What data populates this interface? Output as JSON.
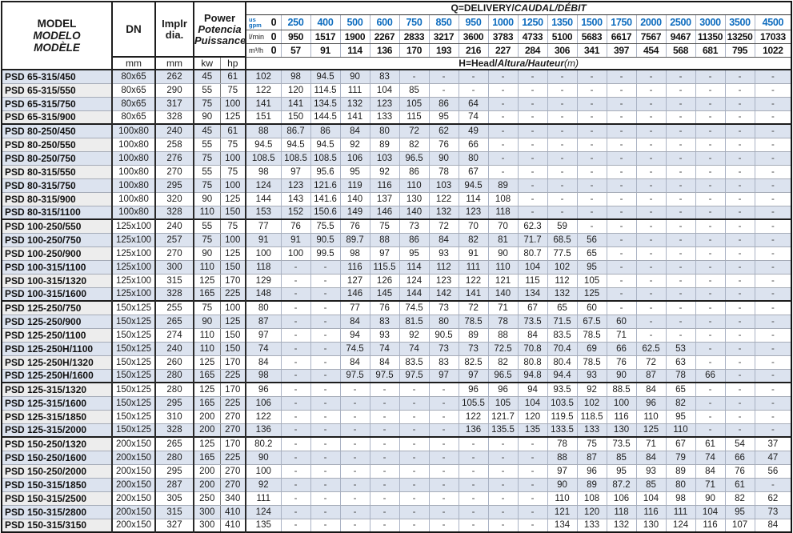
{
  "colors": {
    "accent_blue": "#0e6cbe",
    "row_stripe": "#dce3ef",
    "model_column_gray": "#ededed",
    "grid_light": "#a9b2c4",
    "border_dark": "#222222"
  },
  "table": {
    "header": {
      "model": {
        "l1": "MODEL",
        "l2": "MODELO",
        "l3": "MODÈLE"
      },
      "dn": "DN",
      "implr": {
        "l1": "Implr",
        "l2": "dia."
      },
      "power": {
        "l1": "Power",
        "l2": "Potencia",
        "l3": "Puissance"
      },
      "mm": "mm",
      "kw": "kw",
      "hp": "hp",
      "q_title": {
        "prefix": "Q=DELIVERY/",
        "italic": "CAUDAL/DÉBIT"
      },
      "h_title": {
        "prefix": "H=Head/",
        "italic": "Altura/Hauteur",
        "suffix": "(m)"
      },
      "gpm": {
        "label_top": "us",
        "label_bottom": "gpm",
        "zero": "0",
        "values": [
          "250",
          "400",
          "500",
          "600",
          "750",
          "850",
          "950",
          "1000",
          "1250",
          "1350",
          "1500",
          "1750",
          "2000",
          "2500",
          "3000",
          "3500",
          "4500"
        ]
      },
      "lmin": {
        "label": "l/min",
        "zero": "0",
        "values": [
          "950",
          "1517",
          "1900",
          "2267",
          "2833",
          "3217",
          "3600",
          "3783",
          "4733",
          "5100",
          "5683",
          "6617",
          "7567",
          "9467",
          "11350",
          "13250",
          "17033"
        ]
      },
      "m3h": {
        "label": "m³/h",
        "zero": "0",
        "values": [
          "57",
          "91",
          "114",
          "136",
          "170",
          "193",
          "216",
          "227",
          "284",
          "306",
          "341",
          "397",
          "454",
          "568",
          "681",
          "795",
          "1022"
        ]
      }
    },
    "rows": [
      {
        "model": "PSD 65-315/450",
        "dn": "80x65",
        "implr": "262",
        "kw": "45",
        "hp": "61",
        "values": [
          "102",
          "98",
          "94.5",
          "90",
          "83",
          "-",
          "-",
          "-",
          "-",
          "-",
          "-",
          "-",
          "-",
          "-",
          "-",
          "-",
          "-",
          "-"
        ]
      },
      {
        "model": "PSD 65-315/550",
        "dn": "80x65",
        "implr": "290",
        "kw": "55",
        "hp": "75",
        "values": [
          "122",
          "120",
          "114.5",
          "111",
          "104",
          "85",
          "-",
          "-",
          "-",
          "-",
          "-",
          "-",
          "-",
          "-",
          "-",
          "-",
          "-",
          "-"
        ]
      },
      {
        "model": "PSD 65-315/750",
        "dn": "80x65",
        "implr": "317",
        "kw": "75",
        "hp": "100",
        "values": [
          "141",
          "141",
          "134.5",
          "132",
          "123",
          "105",
          "86",
          "64",
          "-",
          "-",
          "-",
          "-",
          "-",
          "-",
          "-",
          "-",
          "-",
          "-"
        ]
      },
      {
        "model": "PSD 65-315/900",
        "dn": "80x65",
        "implr": "328",
        "kw": "90",
        "hp": "125",
        "values": [
          "151",
          "150",
          "144.5",
          "141",
          "133",
          "115",
          "95",
          "74",
          "-",
          "-",
          "-",
          "-",
          "-",
          "-",
          "-",
          "-",
          "-",
          "-"
        ]
      },
      {
        "model": "PSD 80-250/450",
        "dn": "100x80",
        "implr": "240",
        "kw": "45",
        "hp": "61",
        "group": true,
        "values": [
          "88",
          "86.7",
          "86",
          "84",
          "80",
          "72",
          "62",
          "49",
          "-",
          "-",
          "-",
          "-",
          "-",
          "-",
          "-",
          "-",
          "-",
          "-"
        ]
      },
      {
        "model": "PSD 80-250/550",
        "dn": "100x80",
        "implr": "258",
        "kw": "55",
        "hp": "75",
        "values": [
          "94.5",
          "94.5",
          "94.5",
          "92",
          "89",
          "82",
          "76",
          "66",
          "-",
          "-",
          "-",
          "-",
          "-",
          "-",
          "-",
          "-",
          "-",
          "-"
        ]
      },
      {
        "model": "PSD 80-250/750",
        "dn": "100x80",
        "implr": "276",
        "kw": "75",
        "hp": "100",
        "values": [
          "108.5",
          "108.5",
          "108.5",
          "106",
          "103",
          "96.5",
          "90",
          "80",
          "-",
          "-",
          "-",
          "-",
          "-",
          "-",
          "-",
          "-",
          "-",
          "-"
        ]
      },
      {
        "model": "PSD 80-315/550",
        "dn": "100x80",
        "implr": "270",
        "kw": "55",
        "hp": "75",
        "values": [
          "98",
          "97",
          "95.6",
          "95",
          "92",
          "86",
          "78",
          "67",
          "-",
          "-",
          "-",
          "-",
          "-",
          "-",
          "-",
          "-",
          "-",
          "-"
        ]
      },
      {
        "model": "PSD 80-315/750",
        "dn": "100x80",
        "implr": "295",
        "kw": "75",
        "hp": "100",
        "values": [
          "124",
          "123",
          "121.6",
          "119",
          "116",
          "110",
          "103",
          "94.5",
          "89",
          "-",
          "-",
          "-",
          "-",
          "-",
          "-",
          "-",
          "-",
          "-"
        ]
      },
      {
        "model": "PSD 80-315/900",
        "dn": "100x80",
        "implr": "320",
        "kw": "90",
        "hp": "125",
        "values": [
          "144",
          "143",
          "141.6",
          "140",
          "137",
          "130",
          "122",
          "114",
          "108",
          "-",
          "-",
          "-",
          "-",
          "-",
          "-",
          "-",
          "-",
          "-"
        ]
      },
      {
        "model": "PSD 80-315/1100",
        "dn": "100x80",
        "implr": "328",
        "kw": "110",
        "hp": "150",
        "values": [
          "153",
          "152",
          "150.6",
          "149",
          "146",
          "140",
          "132",
          "123",
          "118",
          "-",
          "-",
          "-",
          "-",
          "-",
          "-",
          "-",
          "-",
          "-"
        ]
      },
      {
        "model": "PSD 100-250/550",
        "dn": "125x100",
        "implr": "240",
        "kw": "55",
        "hp": "75",
        "group": true,
        "values": [
          "77",
          "76",
          "75.5",
          "76",
          "75",
          "73",
          "72",
          "70",
          "70",
          "62.3",
          "59",
          "-",
          "-",
          "-",
          "-",
          "-",
          "-",
          "-"
        ]
      },
      {
        "model": "PSD 100-250/750",
        "dn": "125x100",
        "implr": "257",
        "kw": "75",
        "hp": "100",
        "values": [
          "91",
          "91",
          "90.5",
          "89.7",
          "88",
          "86",
          "84",
          "82",
          "81",
          "71.7",
          "68.5",
          "56",
          "-",
          "-",
          "-",
          "-",
          "-",
          "-"
        ]
      },
      {
        "model": "PSD 100-250/900",
        "dn": "125x100",
        "implr": "270",
        "kw": "90",
        "hp": "125",
        "values": [
          "100",
          "100",
          "99.5",
          "98",
          "97",
          "95",
          "93",
          "91",
          "90",
          "80.7",
          "77.5",
          "65",
          "-",
          "-",
          "-",
          "-",
          "-",
          "-"
        ]
      },
      {
        "model": "PSD 100-315/1100",
        "dn": "125x100",
        "implr": "300",
        "kw": "110",
        "hp": "150",
        "values": [
          "118",
          "-",
          "-",
          "116",
          "115.5",
          "114",
          "112",
          "111",
          "110",
          "104",
          "102",
          "95",
          "-",
          "-",
          "-",
          "-",
          "-",
          "-"
        ]
      },
      {
        "model": "PSD 100-315/1320",
        "dn": "125x100",
        "implr": "315",
        "kw": "125",
        "hp": "170",
        "values": [
          "129",
          "-",
          "-",
          "127",
          "126",
          "124",
          "123",
          "122",
          "121",
          "115",
          "112",
          "105",
          "-",
          "-",
          "-",
          "-",
          "-",
          "-"
        ]
      },
      {
        "model": "PSD 100-315/1600",
        "dn": "125x100",
        "implr": "328",
        "kw": "165",
        "hp": "225",
        "values": [
          "148",
          "-",
          "-",
          "146",
          "145",
          "144",
          "142",
          "141",
          "140",
          "134",
          "132",
          "125",
          "-",
          "-",
          "-",
          "-",
          "-",
          "-"
        ]
      },
      {
        "model": "PSD 125-250/750",
        "dn": "150x125",
        "implr": "255",
        "kw": "75",
        "hp": "100",
        "group": true,
        "values": [
          "80",
          "-",
          "-",
          "77",
          "76",
          "74.5",
          "73",
          "72",
          "71",
          "67",
          "65",
          "60",
          "-",
          "-",
          "-",
          "-",
          "-",
          "-"
        ]
      },
      {
        "model": "PSD 125-250/900",
        "dn": "150x125",
        "implr": "265",
        "kw": "90",
        "hp": "125",
        "values": [
          "87",
          "-",
          "-",
          "84",
          "83",
          "81.5",
          "80",
          "78.5",
          "78",
          "73.5",
          "71.5",
          "67.5",
          "60",
          "-",
          "-",
          "-",
          "-",
          "-"
        ]
      },
      {
        "model": "PSD 125-250/1100",
        "dn": "150x125",
        "implr": "274",
        "kw": "110",
        "hp": "150",
        "values": [
          "97",
          "-",
          "-",
          "94",
          "93",
          "92",
          "90.5",
          "89",
          "88",
          "84",
          "83.5",
          "78.5",
          "71",
          "-",
          "-",
          "-",
          "-",
          "-"
        ]
      },
      {
        "model": "PSD 125-250H/1100",
        "dn": "150x125",
        "implr": "240",
        "kw": "110",
        "hp": "150",
        "values": [
          "74",
          "-",
          "-",
          "74.5",
          "74",
          "74",
          "73",
          "73",
          "72.5",
          "70.8",
          "70.4",
          "69",
          "66",
          "62.5",
          "53",
          "-",
          "-",
          "-"
        ]
      },
      {
        "model": "PSD 125-250H/1320",
        "dn": "150x125",
        "implr": "260",
        "kw": "125",
        "hp": "170",
        "values": [
          "84",
          "-",
          "-",
          "84",
          "84",
          "83.5",
          "83",
          "82.5",
          "82",
          "80.8",
          "80.4",
          "78.5",
          "76",
          "72",
          "63",
          "-",
          "-",
          "-"
        ]
      },
      {
        "model": "PSD 125-250H/1600",
        "dn": "150x125",
        "implr": "280",
        "kw": "165",
        "hp": "225",
        "values": [
          "98",
          "-",
          "-",
          "97.5",
          "97.5",
          "97.5",
          "97",
          "97",
          "96.5",
          "94.8",
          "94.4",
          "93",
          "90",
          "87",
          "78",
          "66",
          "-",
          "-"
        ]
      },
      {
        "model": "PSD 125-315/1320",
        "dn": "150x125",
        "implr": "280",
        "kw": "125",
        "hp": "170",
        "group": true,
        "values": [
          "96",
          "-",
          "-",
          "-",
          "-",
          "-",
          "-",
          "96",
          "96",
          "94",
          "93.5",
          "92",
          "88.5",
          "84",
          "65",
          "-",
          "-",
          "-"
        ]
      },
      {
        "model": "PSD 125-315/1600",
        "dn": "150x125",
        "implr": "295",
        "kw": "165",
        "hp": "225",
        "values": [
          "106",
          "-",
          "-",
          "-",
          "-",
          "-",
          "-",
          "105.5",
          "105",
          "104",
          "103.5",
          "102",
          "100",
          "96",
          "82",
          "-",
          "-",
          "-"
        ]
      },
      {
        "model": "PSD 125-315/1850",
        "dn": "150x125",
        "implr": "310",
        "kw": "200",
        "hp": "270",
        "values": [
          "122",
          "-",
          "-",
          "-",
          "-",
          "-",
          "-",
          "122",
          "121.7",
          "120",
          "119.5",
          "118.5",
          "116",
          "110",
          "95",
          "-",
          "-",
          "-"
        ]
      },
      {
        "model": "PSD 125-315/2000",
        "dn": "150x125",
        "implr": "328",
        "kw": "200",
        "hp": "270",
        "values": [
          "136",
          "-",
          "-",
          "-",
          "-",
          "-",
          "-",
          "136",
          "135.5",
          "135",
          "133.5",
          "133",
          "130",
          "125",
          "110",
          "-",
          "-",
          "-"
        ]
      },
      {
        "model": "PSD 150-250/1320",
        "dn": "200x150",
        "implr": "265",
        "kw": "125",
        "hp": "170",
        "group": true,
        "values": [
          "80.2",
          "-",
          "-",
          "-",
          "-",
          "-",
          "-",
          "-",
          "-",
          "-",
          "78",
          "75",
          "73.5",
          "71",
          "67",
          "61",
          "54",
          "37"
        ]
      },
      {
        "model": "PSD 150-250/1600",
        "dn": "200x150",
        "implr": "280",
        "kw": "165",
        "hp": "225",
        "values": [
          "90",
          "-",
          "-",
          "-",
          "-",
          "-",
          "-",
          "-",
          "-",
          "-",
          "88",
          "87",
          "85",
          "84",
          "79",
          "74",
          "66",
          "47"
        ]
      },
      {
        "model": "PSD 150-250/2000",
        "dn": "200x150",
        "implr": "295",
        "kw": "200",
        "hp": "270",
        "values": [
          "100",
          "-",
          "-",
          "-",
          "-",
          "-",
          "-",
          "-",
          "-",
          "-",
          "97",
          "96",
          "95",
          "93",
          "89",
          "84",
          "76",
          "56"
        ]
      },
      {
        "model": "PSD 150-315/1850",
        "dn": "200x150",
        "implr": "287",
        "kw": "200",
        "hp": "270",
        "values": [
          "92",
          "-",
          "-",
          "-",
          "-",
          "-",
          "-",
          "-",
          "-",
          "-",
          "90",
          "89",
          "87.2",
          "85",
          "80",
          "71",
          "61",
          "-"
        ]
      },
      {
        "model": "PSD 150-315/2500",
        "dn": "200x150",
        "implr": "305",
        "kw": "250",
        "hp": "340",
        "values": [
          "111",
          "-",
          "-",
          "-",
          "-",
          "-",
          "-",
          "-",
          "-",
          "-",
          "110",
          "108",
          "106",
          "104",
          "98",
          "90",
          "82",
          "62"
        ]
      },
      {
        "model": "PSD 150-315/2800",
        "dn": "200x150",
        "implr": "315",
        "kw": "300",
        "hp": "410",
        "values": [
          "124",
          "-",
          "-",
          "-",
          "-",
          "-",
          "-",
          "-",
          "-",
          "-",
          "121",
          "120",
          "118",
          "116",
          "111",
          "104",
          "95",
          "73"
        ]
      },
      {
        "model": "PSD 150-315/3150",
        "dn": "200x150",
        "implr": "327",
        "kw": "300",
        "hp": "410",
        "values": [
          "135",
          "-",
          "-",
          "-",
          "-",
          "-",
          "-",
          "-",
          "-",
          "-",
          "134",
          "133",
          "132",
          "130",
          "124",
          "116",
          "107",
          "84"
        ]
      }
    ]
  }
}
